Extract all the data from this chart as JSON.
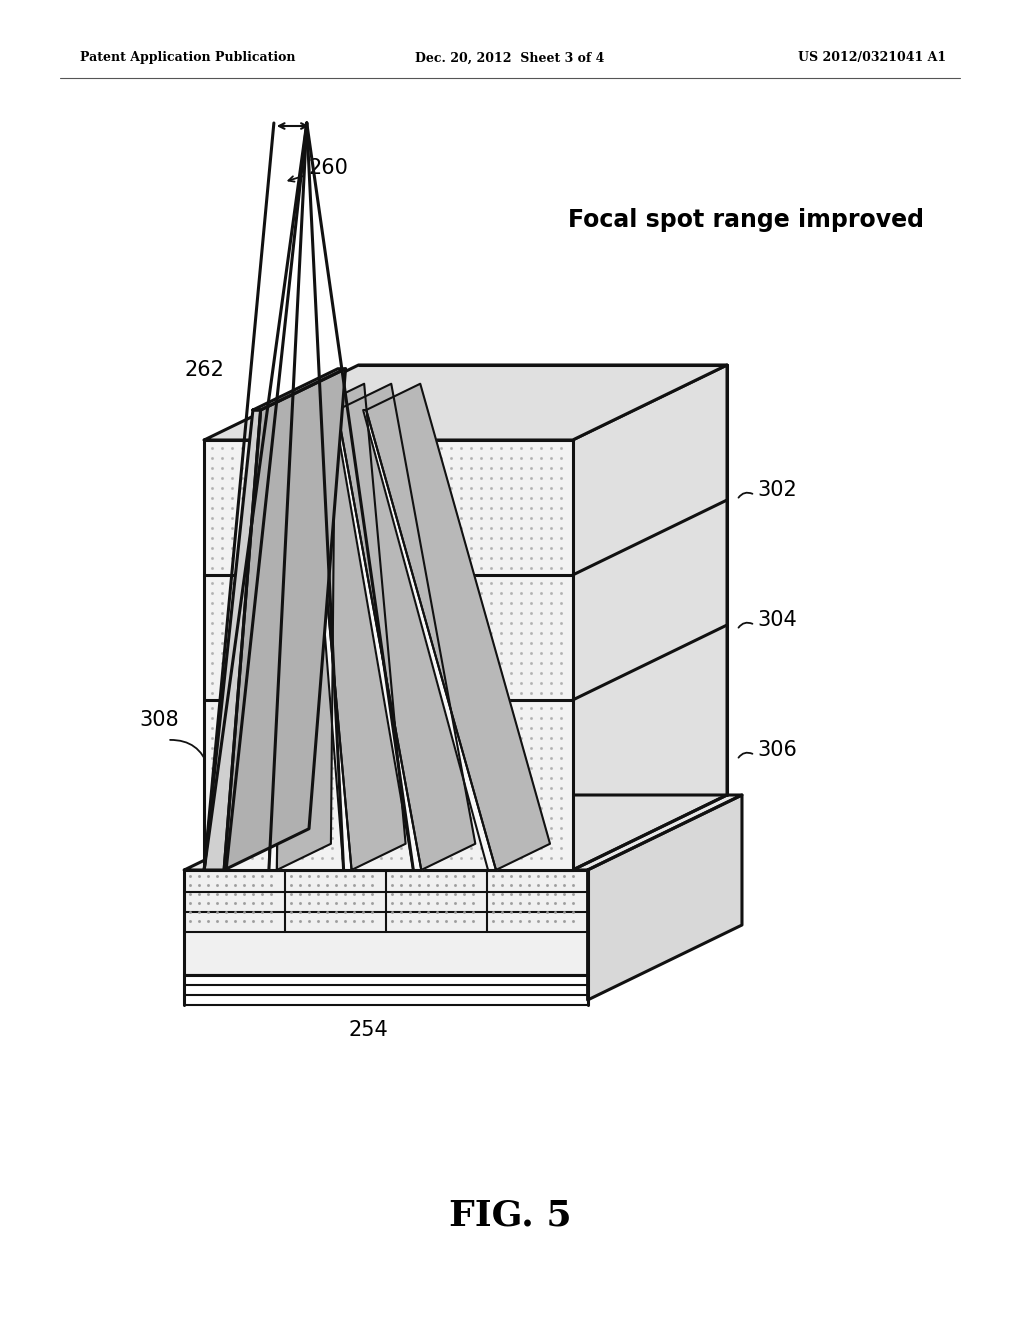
{
  "bg_color": "#ffffff",
  "header_left": "Patent Application Publication",
  "header_center": "Dec. 20, 2012  Sheet 3 of 4",
  "header_right": "US 2012/0321041 A1",
  "figure_label": "FIG. 5",
  "focal_spot_text": "Focal spot range improved",
  "line_color": "#111111",
  "stipple_color": "#c8c8c8",
  "face_light": "#f2f2f2",
  "face_mid": "#e0e0e0",
  "face_dark": "#c8c8c8"
}
